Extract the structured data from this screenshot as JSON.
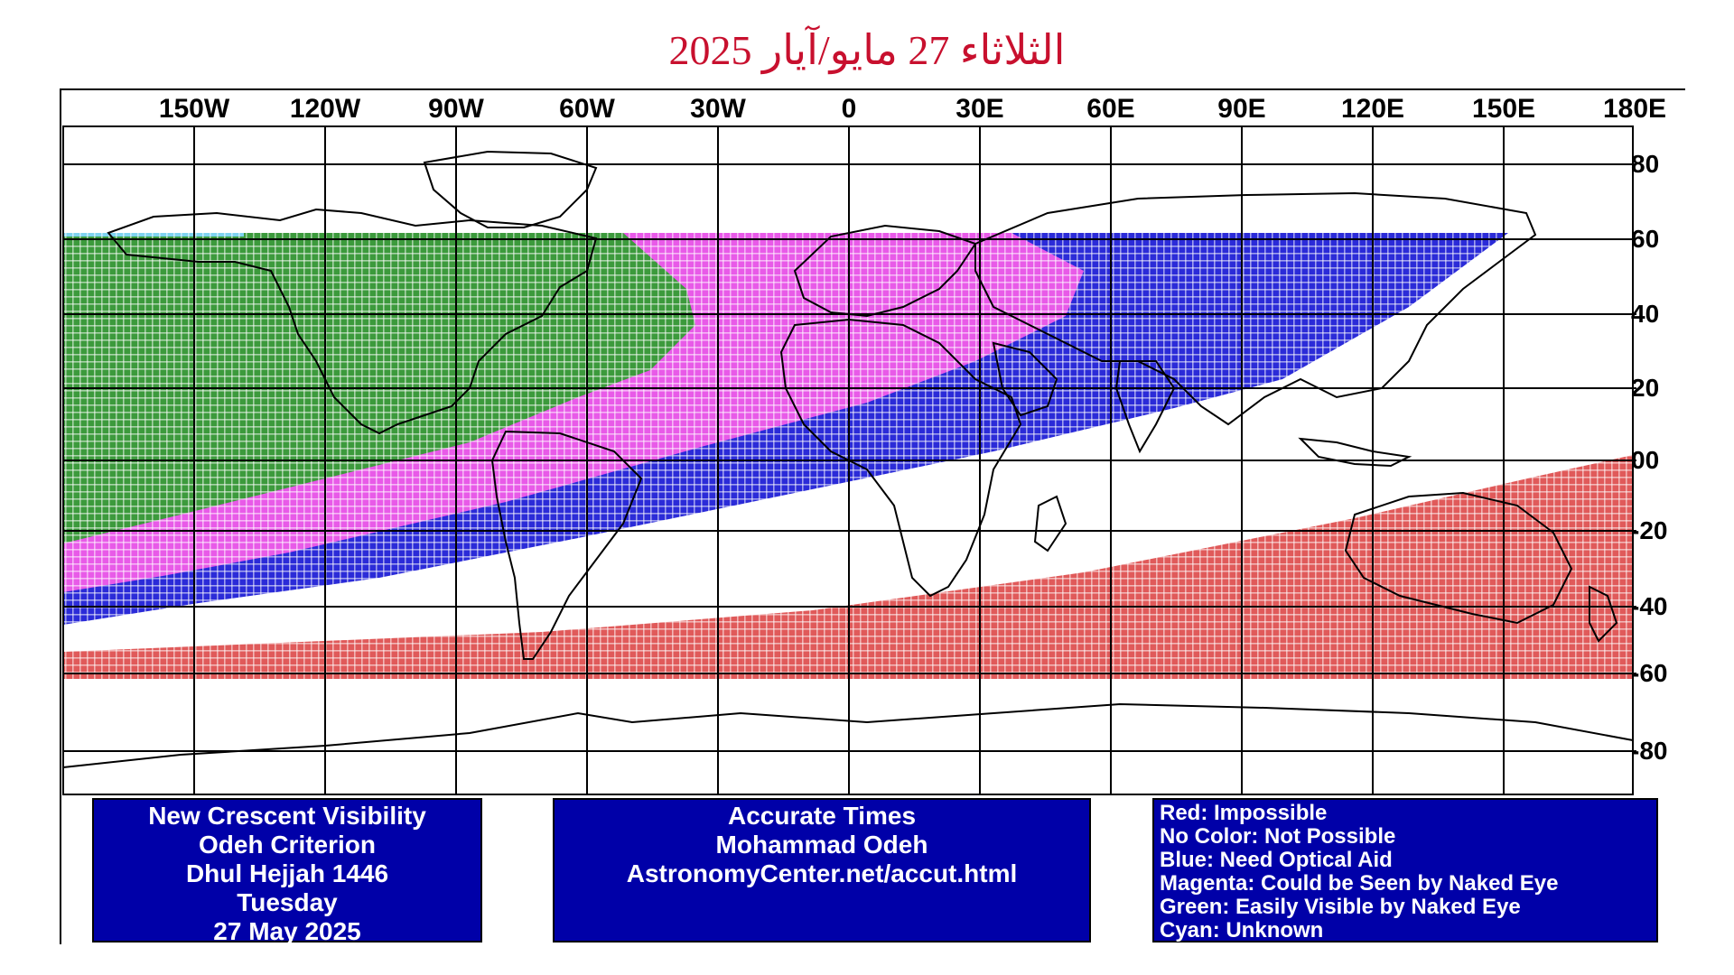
{
  "title": "الثلاثاء 27 مايو/آيار 2025",
  "longitude_labels": [
    "150W",
    "120W",
    "90W",
    "60W",
    "30W",
    "0",
    "30E",
    "60E",
    "90E",
    "120E",
    "150E",
    "180E"
  ],
  "latitude_labels": [
    "80",
    "60",
    "40",
    "20",
    "00",
    "-20",
    "-40",
    "-60",
    "-80"
  ],
  "info_left": {
    "line1": "New Crescent Visibility",
    "line2": "Odeh Criterion",
    "line3": "Dhul Hejjah 1446",
    "line4": "Tuesday",
    "line5": "27 May 2025"
  },
  "info_center": {
    "line1": "Accurate Times",
    "line2": "Mohammad Odeh",
    "line3": "AstronomyCenter.net/accut.html"
  },
  "legend": {
    "red": "Red: Impossible",
    "none": "No Color: Not Possible",
    "blue": "Blue: Need Optical Aid",
    "magenta": "Magenta: Could be Seen by Naked Eye",
    "green": "Green: Easily Visible by Naked Eye",
    "cyan": "Cyan: Unknown"
  },
  "colors": {
    "title": "#c8102e",
    "red_zone": "#e05a5a",
    "blue_zone": "#2b2bd8",
    "magenta_zone": "#e85ae8",
    "green_zone": "#3c9a3c",
    "box_bg": "#0000a8"
  }
}
